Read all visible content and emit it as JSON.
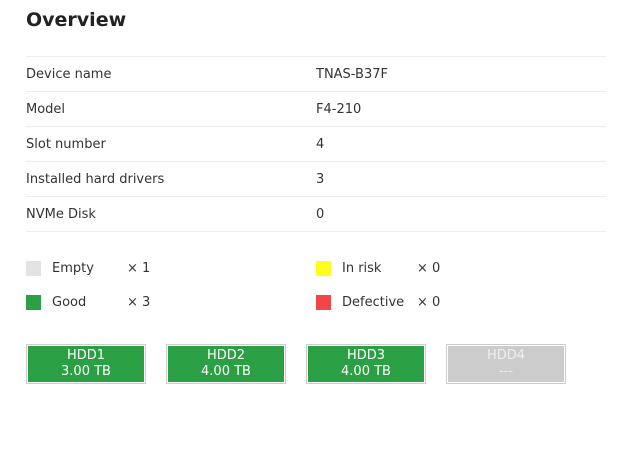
{
  "title": "Overview",
  "info": [
    {
      "label": "Device name",
      "value": "TNAS-B37F"
    },
    {
      "label": "Model",
      "value": "F4-210"
    },
    {
      "label": "Slot number",
      "value": "4"
    },
    {
      "label": "Installed hard drivers",
      "value": "3"
    },
    {
      "label": "NVMe Disk",
      "value": "0"
    }
  ],
  "legend": [
    {
      "label": "Empty",
      "count": "× 1",
      "color": "#e3e3e3"
    },
    {
      "label": "In risk",
      "count": "× 0",
      "color": "#ffff1e"
    },
    {
      "label": "Good",
      "count": "× 3",
      "color": "#2b9f43"
    },
    {
      "label": "Defective",
      "count": "× 0",
      "color": "#f44545"
    }
  ],
  "disks": [
    {
      "name": "HDD1",
      "size": "3.00 TB",
      "status": "good"
    },
    {
      "name": "HDD2",
      "size": "4.00 TB",
      "status": "good"
    },
    {
      "name": "HDD3",
      "size": "4.00 TB",
      "status": "good"
    },
    {
      "name": "HDD4",
      "size": "---",
      "status": "empty"
    }
  ],
  "colors": {
    "good": "#2b9f43",
    "empty": "#cccccc"
  }
}
